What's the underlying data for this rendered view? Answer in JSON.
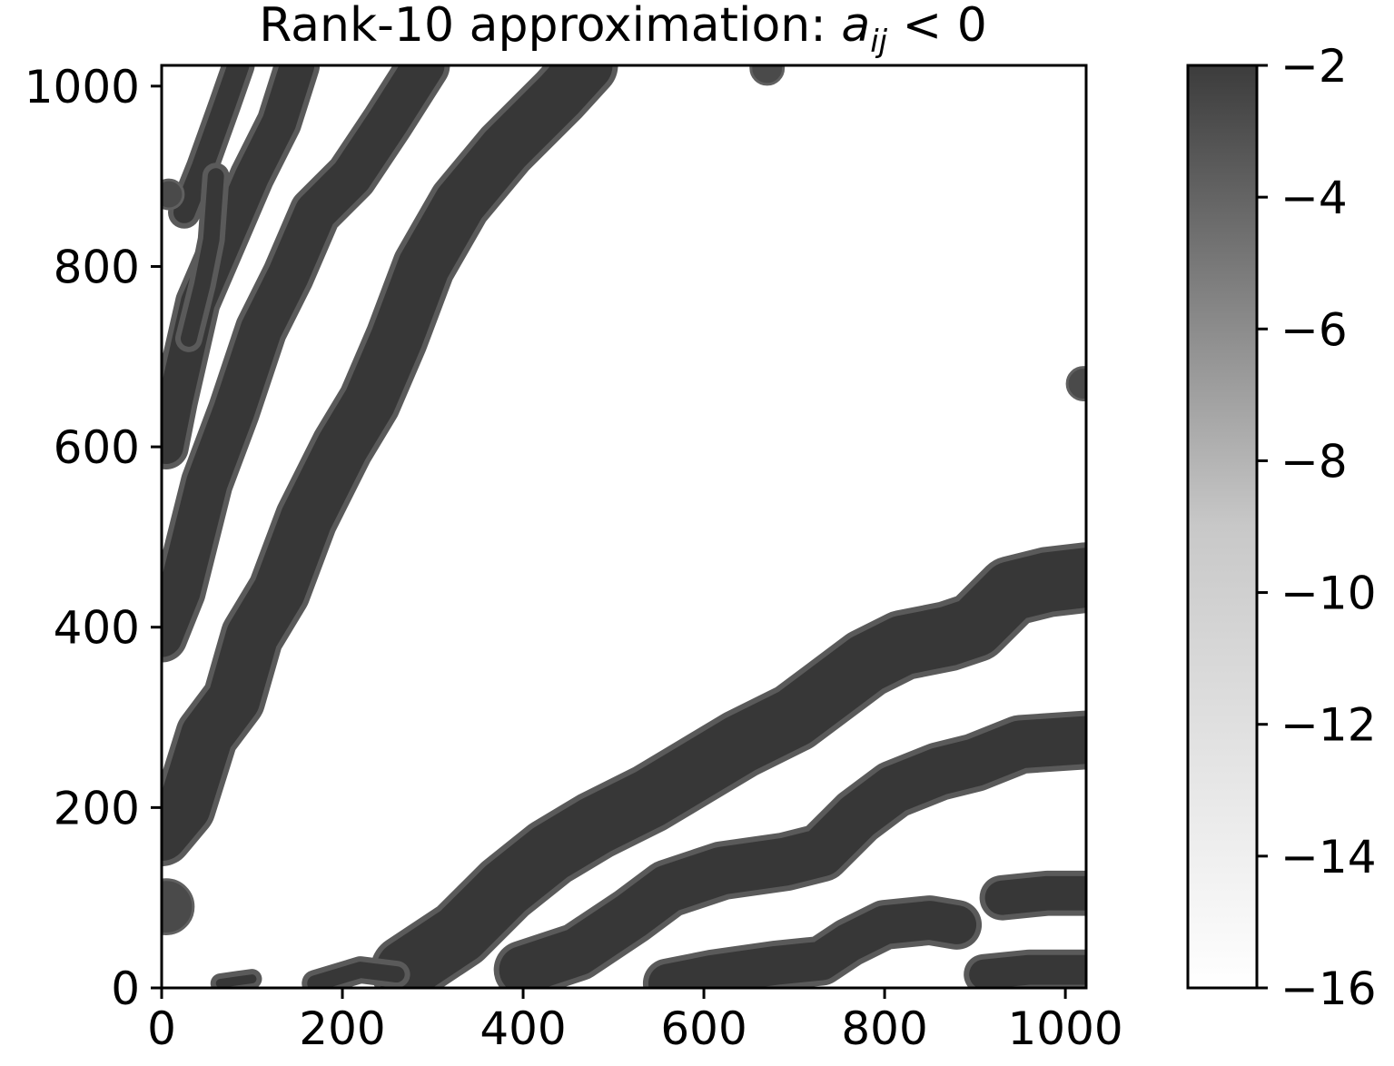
{
  "chart_data": {
    "type": "scatter",
    "title": {
      "prefix": "Rank-10 approximation: ",
      "var": "a",
      "sub": "ij",
      "suffix": " < 0"
    },
    "xlabel": "",
    "ylabel": "",
    "xlim": [
      0,
      1023
    ],
    "ylim": [
      0,
      1023
    ],
    "xticks": [
      0,
      200,
      400,
      600,
      800,
      1000
    ],
    "yticks": [
      0,
      200,
      400,
      600,
      800,
      1000
    ],
    "grid": false,
    "colormap": "greys (reversed), white = -16, dark gray = -2",
    "colorbar": {
      "range": [
        -16,
        -2
      ],
      "ticks": [
        -2,
        -4,
        -6,
        -8,
        -10,
        -12,
        -14,
        -16
      ],
      "tick_labels": [
        "−2",
        "−4",
        "−6",
        "−8",
        "−10",
        "−12",
        "−14",
        "−16"
      ]
    },
    "point_value": -2,
    "bands_upper": [
      {
        "points": [
          [
            0,
            170
          ],
          [
            25,
            200
          ],
          [
            50,
            280
          ],
          [
            80,
            320
          ],
          [
            100,
            390
          ],
          [
            130,
            440
          ],
          [
            160,
            520
          ],
          [
            200,
            600
          ],
          [
            230,
            650
          ],
          [
            260,
            720
          ],
          [
            290,
            800
          ],
          [
            330,
            870
          ],
          [
            380,
            930
          ],
          [
            440,
            990
          ],
          [
            470,
            1023
          ]
        ],
        "width": 70
      },
      {
        "points": [
          [
            0,
            390
          ],
          [
            20,
            440
          ],
          [
            50,
            560
          ],
          [
            80,
            640
          ],
          [
            110,
            730
          ],
          [
            140,
            790
          ],
          [
            170,
            860
          ],
          [
            210,
            900
          ],
          [
            250,
            960
          ],
          [
            290,
            1023
          ]
        ],
        "width": 58
      },
      {
        "points": [
          [
            5,
            600
          ],
          [
            15,
            650
          ],
          [
            40,
            760
          ],
          [
            70,
            830
          ],
          [
            100,
            900
          ],
          [
            130,
            960
          ],
          [
            150,
            1023
          ]
        ],
        "width": 50
      },
      {
        "points": [
          [
            25,
            860
          ],
          [
            45,
            910
          ],
          [
            70,
            980
          ],
          [
            85,
            1023
          ]
        ],
        "width": 36
      },
      {
        "points": [
          [
            30,
            720
          ],
          [
            45,
            780
          ],
          [
            55,
            830
          ],
          [
            60,
            900
          ]
        ],
        "width": 30
      }
    ],
    "bands_lower": [
      {
        "points": [
          [
            270,
            20
          ],
          [
            330,
            60
          ],
          [
            380,
            110
          ],
          [
            430,
            150
          ],
          [
            480,
            180
          ],
          [
            540,
            210
          ],
          [
            590,
            240
          ],
          [
            640,
            270
          ],
          [
            700,
            300
          ],
          [
            740,
            330
          ],
          [
            780,
            360
          ],
          [
            820,
            380
          ],
          [
            870,
            390
          ],
          [
            900,
            400
          ],
          [
            940,
            440
          ],
          [
            980,
            450
          ],
          [
            1023,
            455
          ]
        ],
        "width": 78
      },
      {
        "points": [
          [
            400,
            20
          ],
          [
            460,
            40
          ],
          [
            520,
            80
          ],
          [
            560,
            110
          ],
          [
            620,
            130
          ],
          [
            690,
            140
          ],
          [
            730,
            150
          ],
          [
            770,
            190
          ],
          [
            810,
            220
          ],
          [
            860,
            240
          ],
          [
            900,
            250
          ],
          [
            950,
            270
          ],
          [
            1023,
            275
          ]
        ],
        "width": 65
      },
      {
        "points": [
          [
            560,
            5
          ],
          [
            610,
            15
          ],
          [
            680,
            25
          ],
          [
            730,
            30
          ],
          [
            760,
            50
          ],
          [
            800,
            70
          ],
          [
            850,
            75
          ],
          [
            880,
            70
          ]
        ],
        "width": 55
      },
      {
        "points": [
          [
            930,
            100
          ],
          [
            980,
            105
          ],
          [
            1023,
            105
          ]
        ],
        "width": 50
      },
      {
        "points": [
          [
            910,
            15
          ],
          [
            960,
            20
          ],
          [
            1023,
            20
          ]
        ],
        "width": 45
      },
      {
        "points": [
          [
            170,
            5
          ],
          [
            220,
            20
          ],
          [
            260,
            15
          ]
        ],
        "width": 30
      },
      {
        "points": [
          [
            65,
            5
          ],
          [
            85,
            8
          ],
          [
            100,
            10
          ]
        ],
        "width": 22
      }
    ],
    "blobs": [
      {
        "x": 5,
        "y": 90,
        "r": 30
      },
      {
        "x": 670,
        "y": 1020,
        "r": 18
      },
      {
        "x": 1020,
        "y": 670,
        "r": 18
      },
      {
        "x": 8,
        "y": 880,
        "r": 16
      }
    ]
  }
}
